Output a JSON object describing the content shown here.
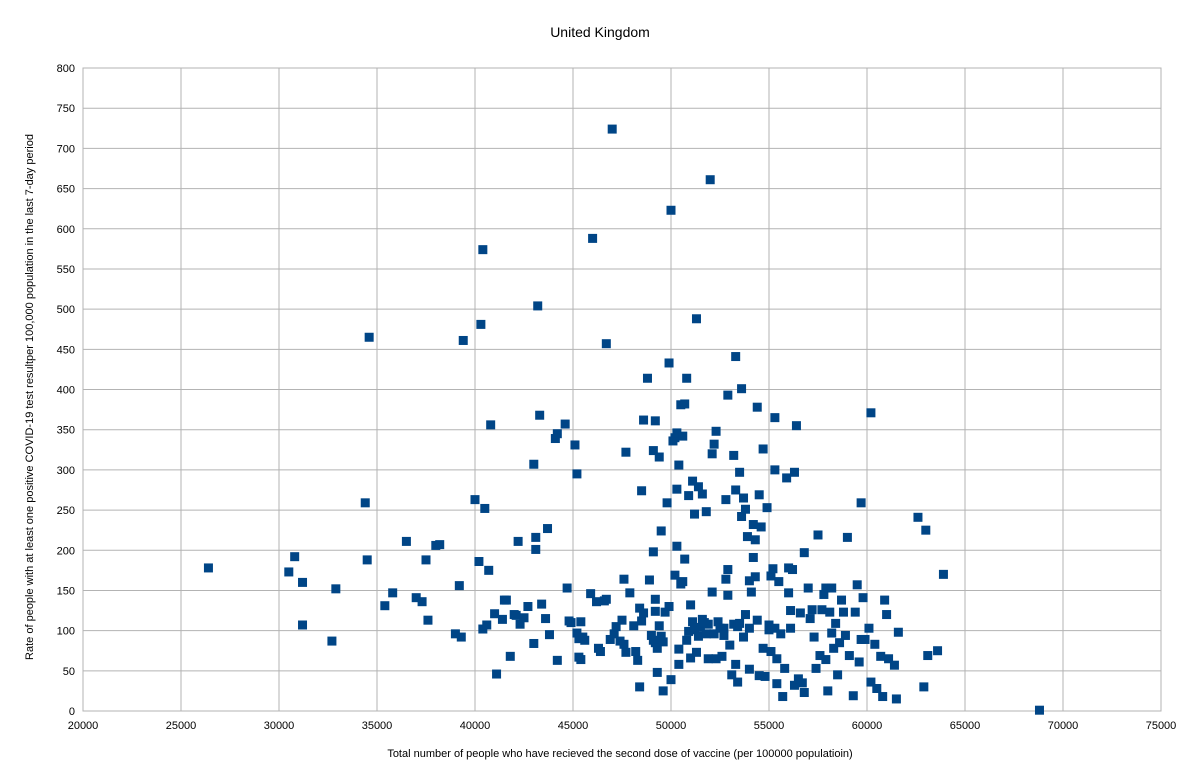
{
  "chart_data": {
    "type": "scatter",
    "title": "United Kingdom",
    "xlabel": "Total number of people who have recieved the second dose of vaccine (per 100000 populatioin)",
    "ylabel": "Rate of people with at least one positive COVID-19 test resultper 100,000 population in the last 7-day period",
    "xlim": [
      20000,
      75000
    ],
    "ylim": [
      0,
      800
    ],
    "x_ticks": [
      "20000",
      "25000",
      "30000",
      "35000",
      "40000",
      "45000",
      "50000",
      "55000",
      "60000",
      "65000",
      "70000",
      "75000"
    ],
    "y_ticks": [
      "0",
      "50",
      "100",
      "150",
      "200",
      "250",
      "300",
      "350",
      "400",
      "450",
      "500",
      "550",
      "600",
      "650",
      "700",
      "750",
      "800"
    ],
    "grid": true,
    "marker_color": "#004586",
    "points": [
      [
        26400,
        178
      ],
      [
        30500,
        173
      ],
      [
        30800,
        192
      ],
      [
        31200,
        107
      ],
      [
        31200,
        160
      ],
      [
        32700,
        87
      ],
      [
        32900,
        152
      ],
      [
        34400,
        259
      ],
      [
        34500,
        188
      ],
      [
        34600,
        465
      ],
      [
        35400,
        131
      ],
      [
        35800,
        147
      ],
      [
        36500,
        211
      ],
      [
        37000,
        141
      ],
      [
        37300,
        136
      ],
      [
        37500,
        188
      ],
      [
        37600,
        113
      ],
      [
        38000,
        206
      ],
      [
        38200,
        207
      ],
      [
        39000,
        96
      ],
      [
        39200,
        156
      ],
      [
        39300,
        92
      ],
      [
        39400,
        461
      ],
      [
        40000,
        263
      ],
      [
        40200,
        186
      ],
      [
        40300,
        481
      ],
      [
        40400,
        574
      ],
      [
        40400,
        102
      ],
      [
        40500,
        252
      ],
      [
        40600,
        107
      ],
      [
        40700,
        175
      ],
      [
        40800,
        356
      ],
      [
        41000,
        121
      ],
      [
        41100,
        46
      ],
      [
        41400,
        114
      ],
      [
        41500,
        138
      ],
      [
        41600,
        138
      ],
      [
        41800,
        68
      ],
      [
        42000,
        120
      ],
      [
        42100,
        119
      ],
      [
        42200,
        211
      ],
      [
        42300,
        108
      ],
      [
        42500,
        116
      ],
      [
        42700,
        130
      ],
      [
        43000,
        307
      ],
      [
        43000,
        84
      ],
      [
        43100,
        216
      ],
      [
        43100,
        201
      ],
      [
        43200,
        504
      ],
      [
        43300,
        368
      ],
      [
        43400,
        133
      ],
      [
        43600,
        115
      ],
      [
        43700,
        227
      ],
      [
        43800,
        95
      ],
      [
        44100,
        339
      ],
      [
        44200,
        345
      ],
      [
        44200,
        63
      ],
      [
        44600,
        357
      ],
      [
        44700,
        153
      ],
      [
        44800,
        112
      ],
      [
        44900,
        110
      ],
      [
        45100,
        331
      ],
      [
        45200,
        97
      ],
      [
        45200,
        295
      ],
      [
        45300,
        90
      ],
      [
        45300,
        67
      ],
      [
        45400,
        111
      ],
      [
        45400,
        64
      ],
      [
        45500,
        92
      ],
      [
        45600,
        88
      ],
      [
        45900,
        146
      ],
      [
        46000,
        588
      ],
      [
        46200,
        136
      ],
      [
        46300,
        78
      ],
      [
        46400,
        74
      ],
      [
        46600,
        137
      ],
      [
        46700,
        457
      ],
      [
        46700,
        139
      ],
      [
        46900,
        89
      ],
      [
        47000,
        724
      ],
      [
        47100,
        96
      ],
      [
        47200,
        105
      ],
      [
        47400,
        87
      ],
      [
        47500,
        113
      ],
      [
        47600,
        83
      ],
      [
        47600,
        164
      ],
      [
        47700,
        322
      ],
      [
        47700,
        73
      ],
      [
        47900,
        147
      ],
      [
        48100,
        106
      ],
      [
        48200,
        74
      ],
      [
        48300,
        63
      ],
      [
        48400,
        30
      ],
      [
        48400,
        128
      ],
      [
        48500,
        274
      ],
      [
        48500,
        112
      ],
      [
        48600,
        122
      ],
      [
        48600,
        362
      ],
      [
        48800,
        414
      ],
      [
        48900,
        163
      ],
      [
        49000,
        94
      ],
      [
        49100,
        198
      ],
      [
        49100,
        324
      ],
      [
        49100,
        88
      ],
      [
        49200,
        139
      ],
      [
        49200,
        361
      ],
      [
        49200,
        124
      ],
      [
        49200,
        85
      ],
      [
        49300,
        78
      ],
      [
        49300,
        48
      ],
      [
        49400,
        316
      ],
      [
        49400,
        106
      ],
      [
        49500,
        224
      ],
      [
        49500,
        93
      ],
      [
        49600,
        25
      ],
      [
        49600,
        86
      ],
      [
        49700,
        123
      ],
      [
        49800,
        259
      ],
      [
        49900,
        433
      ],
      [
        49900,
        130
      ],
      [
        50000,
        623
      ],
      [
        50000,
        39
      ],
      [
        50100,
        336
      ],
      [
        50200,
        169
      ],
      [
        50200,
        340
      ],
      [
        50300,
        346
      ],
      [
        50300,
        205
      ],
      [
        50300,
        276
      ],
      [
        50400,
        58
      ],
      [
        50400,
        306
      ],
      [
        50400,
        77
      ],
      [
        50500,
        381
      ],
      [
        50500,
        158
      ],
      [
        50600,
        342
      ],
      [
        50600,
        161
      ],
      [
        50700,
        382
      ],
      [
        50700,
        189
      ],
      [
        50800,
        414
      ],
      [
        50800,
        88
      ],
      [
        50900,
        99
      ],
      [
        50900,
        268
      ],
      [
        51000,
        66
      ],
      [
        51000,
        132
      ],
      [
        51100,
        286
      ],
      [
        51100,
        111
      ],
      [
        51200,
        101
      ],
      [
        51200,
        245
      ],
      [
        51300,
        488
      ],
      [
        51300,
        73
      ],
      [
        51400,
        279
      ],
      [
        51400,
        93
      ],
      [
        51500,
        104
      ],
      [
        51600,
        270
      ],
      [
        51600,
        114
      ],
      [
        51700,
        110
      ],
      [
        51800,
        96
      ],
      [
        51800,
        248
      ],
      [
        51900,
        65
      ],
      [
        51900,
        108
      ],
      [
        52000,
        661
      ],
      [
        52100,
        148
      ],
      [
        52100,
        320
      ],
      [
        52200,
        332
      ],
      [
        52200,
        96
      ],
      [
        52300,
        348
      ],
      [
        52300,
        65
      ],
      [
        52400,
        111
      ],
      [
        52500,
        103
      ],
      [
        52600,
        68
      ],
      [
        52700,
        103
      ],
      [
        52700,
        94
      ],
      [
        52800,
        263
      ],
      [
        52800,
        164
      ],
      [
        52900,
        393
      ],
      [
        52900,
        176
      ],
      [
        52900,
        144
      ],
      [
        53000,
        82
      ],
      [
        53100,
        45
      ],
      [
        53200,
        318
      ],
      [
        53200,
        108
      ],
      [
        53300,
        441
      ],
      [
        53300,
        275
      ],
      [
        53300,
        58
      ],
      [
        53400,
        105
      ],
      [
        53400,
        36
      ],
      [
        53500,
        109
      ],
      [
        53500,
        297
      ],
      [
        53600,
        401
      ],
      [
        53600,
        242
      ],
      [
        53700,
        92
      ],
      [
        53700,
        265
      ],
      [
        53800,
        120
      ],
      [
        53800,
        251
      ],
      [
        53900,
        217
      ],
      [
        54000,
        162
      ],
      [
        54000,
        103
      ],
      [
        54000,
        52
      ],
      [
        54100,
        148
      ],
      [
        54200,
        232
      ],
      [
        54200,
        191
      ],
      [
        54300,
        213
      ],
      [
        54300,
        167
      ],
      [
        54400,
        113
      ],
      [
        54400,
        378
      ],
      [
        54500,
        269
      ],
      [
        54500,
        44
      ],
      [
        54600,
        229
      ],
      [
        54700,
        326
      ],
      [
        54700,
        78
      ],
      [
        54800,
        43
      ],
      [
        54900,
        253
      ],
      [
        55000,
        101
      ],
      [
        55000,
        107
      ],
      [
        55100,
        74
      ],
      [
        55100,
        168
      ],
      [
        55200,
        177
      ],
      [
        55300,
        300
      ],
      [
        55300,
        365
      ],
      [
        55300,
        103
      ],
      [
        55400,
        65
      ],
      [
        55400,
        34
      ],
      [
        55500,
        161
      ],
      [
        55600,
        96
      ],
      [
        55700,
        18
      ],
      [
        55800,
        53
      ],
      [
        55900,
        290
      ],
      [
        56000,
        178
      ],
      [
        56000,
        147
      ],
      [
        56100,
        103
      ],
      [
        56100,
        125
      ],
      [
        56200,
        176
      ],
      [
        56300,
        297
      ],
      [
        56300,
        32
      ],
      [
        56400,
        355
      ],
      [
        56500,
        40
      ],
      [
        56600,
        122
      ],
      [
        56700,
        35
      ],
      [
        56800,
        197
      ],
      [
        56800,
        23
      ],
      [
        57000,
        153
      ],
      [
        57100,
        115
      ],
      [
        57200,
        126
      ],
      [
        57300,
        92
      ],
      [
        57400,
        53
      ],
      [
        57500,
        219
      ],
      [
        57600,
        69
      ],
      [
        57700,
        126
      ],
      [
        57800,
        145
      ],
      [
        57900,
        153
      ],
      [
        57900,
        64
      ],
      [
        58000,
        25
      ],
      [
        58100,
        123
      ],
      [
        58200,
        97
      ],
      [
        58200,
        153
      ],
      [
        58300,
        78
      ],
      [
        58400,
        109
      ],
      [
        58500,
        45
      ],
      [
        58600,
        85
      ],
      [
        58700,
        138
      ],
      [
        58800,
        123
      ],
      [
        58900,
        94
      ],
      [
        59000,
        216
      ],
      [
        59100,
        69
      ],
      [
        59300,
        19
      ],
      [
        59400,
        123
      ],
      [
        59500,
        157
      ],
      [
        59600,
        61
      ],
      [
        59700,
        259
      ],
      [
        59700,
        89
      ],
      [
        59800,
        141
      ],
      [
        59900,
        89
      ],
      [
        60100,
        103
      ],
      [
        60200,
        371
      ],
      [
        60200,
        36
      ],
      [
        60400,
        83
      ],
      [
        60500,
        28
      ],
      [
        60700,
        68
      ],
      [
        60800,
        18
      ],
      [
        60900,
        138
      ],
      [
        61000,
        120
      ],
      [
        61100,
        65
      ],
      [
        61400,
        57
      ],
      [
        61500,
        15
      ],
      [
        61600,
        98
      ],
      [
        62600,
        241
      ],
      [
        62900,
        30
      ],
      [
        63000,
        225
      ],
      [
        63100,
        69
      ],
      [
        63600,
        75
      ],
      [
        63900,
        170
      ],
      [
        68800,
        1
      ]
    ]
  }
}
